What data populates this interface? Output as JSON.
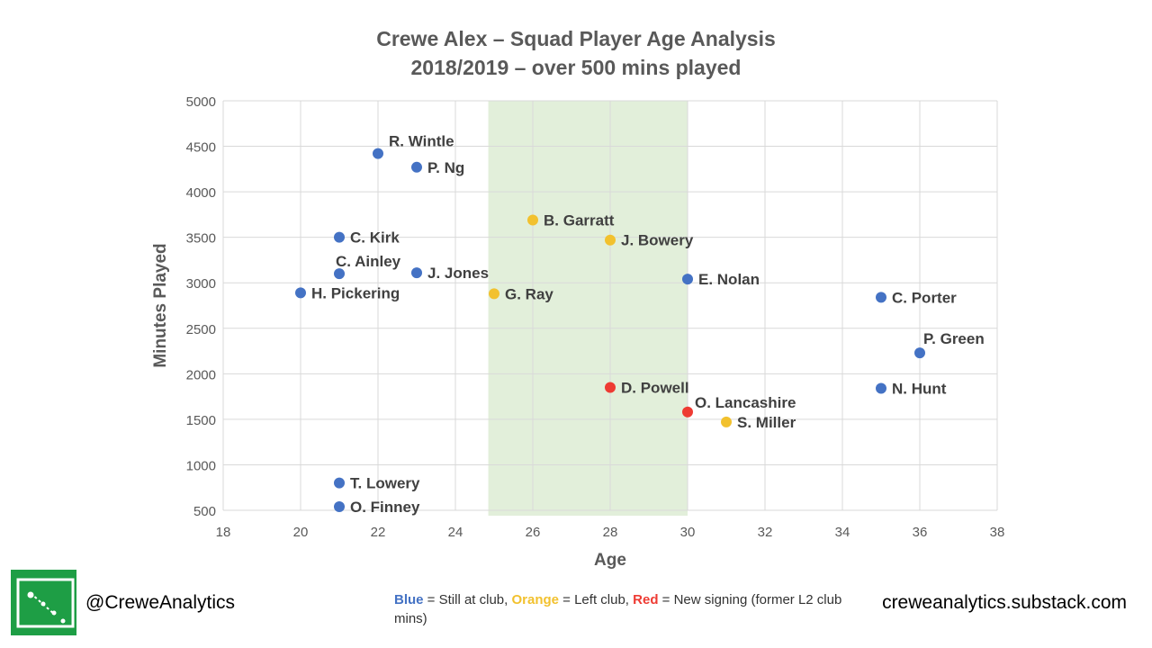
{
  "title_line1": "Crewe Alex – Squad Player Age Analysis",
  "title_line2": "2018/2019 – over 500 mins played",
  "footer": {
    "handle": "@CreweAnalytics",
    "site": "creweanalytics.substack.com",
    "legend_blue_word": "Blue",
    "legend_blue_text": " = Still at club, ",
    "legend_orange_word": "Orange",
    "legend_orange_text": " = Left club, ",
    "legend_red_word": "Red",
    "legend_red_text": " = New signing (former L2 club mins)"
  },
  "colors": {
    "blue": "#4472C4",
    "orange": "#F2C12E",
    "red": "#EE3B33",
    "band": "#E2EFDA",
    "logo_green": "#1E9E45"
  },
  "chart_data": {
    "type": "scatter",
    "xlabel": "Age",
    "ylabel": "Minutes Played",
    "xlim": [
      18,
      38
    ],
    "ylim": [
      500,
      5000
    ],
    "xticks": [
      18,
      20,
      22,
      24,
      26,
      28,
      30,
      32,
      34,
      36,
      38
    ],
    "yticks": [
      500,
      1000,
      1500,
      2000,
      2500,
      3000,
      3500,
      4000,
      4500,
      5000
    ],
    "grid": true,
    "highlight_band": [
      24.85,
      30
    ],
    "points": [
      {
        "name": "R. Wintle",
        "x": 22,
        "y": 4420,
        "status": "blue"
      },
      {
        "name": "P. Ng",
        "x": 23,
        "y": 4270,
        "status": "blue"
      },
      {
        "name": "B. Garratt",
        "x": 26,
        "y": 3690,
        "status": "orange"
      },
      {
        "name": "C. Kirk",
        "x": 21,
        "y": 3500,
        "status": "blue"
      },
      {
        "name": "J. Bowery",
        "x": 28,
        "y": 3470,
        "status": "orange"
      },
      {
        "name": "C. Ainley",
        "x": 21,
        "y": 3100,
        "status": "blue"
      },
      {
        "name": "J. Jones",
        "x": 23,
        "y": 3110,
        "status": "blue"
      },
      {
        "name": "E. Nolan",
        "x": 30,
        "y": 3040,
        "status": "blue"
      },
      {
        "name": "H. Pickering",
        "x": 20,
        "y": 2890,
        "status": "blue"
      },
      {
        "name": "G. Ray",
        "x": 25,
        "y": 2880,
        "status": "orange"
      },
      {
        "name": "C. Porter",
        "x": 35,
        "y": 2840,
        "status": "blue"
      },
      {
        "name": "P. Green",
        "x": 36,
        "y": 2230,
        "status": "blue"
      },
      {
        "name": "D. Powell",
        "x": 28,
        "y": 1850,
        "status": "red"
      },
      {
        "name": "N. Hunt",
        "x": 35,
        "y": 1840,
        "status": "blue"
      },
      {
        "name": "O. Lancashire",
        "x": 30,
        "y": 1580,
        "status": "red"
      },
      {
        "name": "S. Miller",
        "x": 31,
        "y": 1470,
        "status": "orange"
      },
      {
        "name": "T. Lowery",
        "x": 21,
        "y": 800,
        "status": "blue"
      },
      {
        "name": "O. Finney",
        "x": 21,
        "y": 540,
        "status": "blue"
      }
    ]
  }
}
